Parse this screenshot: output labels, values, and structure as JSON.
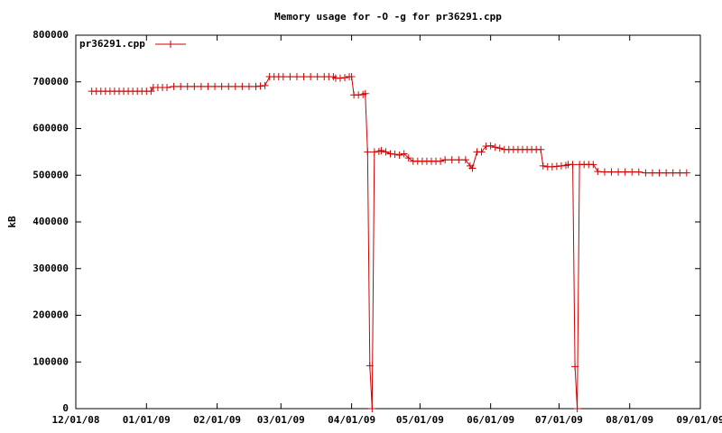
{
  "chart_data": {
    "type": "line",
    "title": "Memory usage for -O -g for pr36291.cpp",
    "y_label": "kB",
    "x": [
      "2008-12-08",
      "2008-12-10",
      "2008-12-12",
      "2008-12-14",
      "2008-12-16",
      "2008-12-18",
      "2008-12-20",
      "2008-12-22",
      "2008-12-24",
      "2008-12-26",
      "2008-12-28",
      "2008-12-30",
      "2009-01-01",
      "2009-01-03",
      "2009-01-04",
      "2009-01-06",
      "2009-01-08",
      "2009-01-10",
      "2009-01-13",
      "2009-01-16",
      "2009-01-19",
      "2009-01-22",
      "2009-01-25",
      "2009-01-28",
      "2009-01-31",
      "2009-02-03",
      "2009-02-06",
      "2009-02-09",
      "2009-02-12",
      "2009-02-15",
      "2009-02-18",
      "2009-02-20",
      "2009-02-22",
      "2009-02-24",
      "2009-02-26",
      "2009-02-28",
      "2009-03-02",
      "2009-03-05",
      "2009-03-08",
      "2009-03-11",
      "2009-03-14",
      "2009-03-17",
      "2009-03-20",
      "2009-03-22",
      "2009-03-24",
      "2009-03-25",
      "2009-03-27",
      "2009-03-29",
      "2009-03-31",
      "2009-04-01",
      "2009-04-02",
      "2009-04-04",
      "2009-04-06",
      "2009-04-07",
      "2009-04-08",
      "2009-04-09",
      "2009-04-10",
      "2009-04-11",
      "2009-04-13",
      "2009-04-14",
      "2009-04-16",
      "2009-04-18",
      "2009-04-20",
      "2009-04-22",
      "2009-04-24",
      "2009-04-26",
      "2009-04-28",
      "2009-04-30",
      "2009-05-02",
      "2009-05-04",
      "2009-05-06",
      "2009-05-08",
      "2009-05-10",
      "2009-05-12",
      "2009-05-15",
      "2009-05-18",
      "2009-05-21",
      "2009-05-23",
      "2009-05-24",
      "2009-05-26",
      "2009-05-28",
      "2009-05-30",
      "2009-06-01",
      "2009-06-03",
      "2009-06-05",
      "2009-06-07",
      "2009-06-09",
      "2009-06-11",
      "2009-06-13",
      "2009-06-15",
      "2009-06-17",
      "2009-06-19",
      "2009-06-21",
      "2009-06-23",
      "2009-06-24",
      "2009-06-26",
      "2009-06-28",
      "2009-06-30",
      "2009-07-02",
      "2009-07-04",
      "2009-07-05",
      "2009-07-07",
      "2009-07-08",
      "2009-07-09",
      "2009-07-10",
      "2009-07-12",
      "2009-07-14",
      "2009-07-16",
      "2009-07-18",
      "2009-07-21",
      "2009-07-24",
      "2009-07-27",
      "2009-07-30",
      "2009-08-02",
      "2009-08-05",
      "2009-08-08",
      "2009-08-11",
      "2009-08-14",
      "2009-08-17",
      "2009-08-20",
      "2009-08-23",
      "2009-08-26"
    ],
    "series": [
      {
        "name": "pr36291.cpp",
        "color": "#d00000",
        "values": [
          680000,
          680000,
          680000,
          680000,
          680000,
          680000,
          680000,
          680000,
          680000,
          680000,
          680000,
          680000,
          680000,
          680000,
          688000,
          688000,
          688000,
          688000,
          690000,
          690000,
          690000,
          690000,
          690000,
          690000,
          690000,
          690000,
          690000,
          690000,
          690000,
          690000,
          690000,
          691000,
          692000,
          711000,
          711000,
          711000,
          711000,
          711000,
          711000,
          711000,
          711000,
          711000,
          711000,
          711000,
          711000,
          708000,
          708000,
          709000,
          711000,
          711000,
          672000,
          672000,
          673000,
          675000,
          550000,
          92000,
          0,
          550000,
          551000,
          553000,
          550000,
          546000,
          545000,
          543000,
          546000,
          537000,
          530000,
          530000,
          530000,
          530000,
          530000,
          530000,
          530000,
          533000,
          533000,
          533000,
          533000,
          520000,
          515000,
          550000,
          550000,
          562000,
          563000,
          560000,
          558000,
          555000,
          555000,
          555000,
          555000,
          555000,
          555000,
          555000,
          555000,
          555000,
          520000,
          518000,
          518000,
          519000,
          520000,
          521000,
          523000,
          523000,
          90000,
          0,
          523000,
          523000,
          523000,
          523000,
          508000,
          507000,
          507000,
          507000,
          507000,
          507000,
          507000,
          505000,
          505000,
          505000,
          505000,
          505000,
          505000,
          505000
        ]
      }
    ],
    "xlim": [
      "2008-12-01",
      "2009-09-01"
    ],
    "xticks": [
      {
        "value": "2008-12-01",
        "label": "12/01/08"
      },
      {
        "value": "2009-01-01",
        "label": "01/01/09"
      },
      {
        "value": "2009-02-01",
        "label": "02/01/09"
      },
      {
        "value": "2009-03-01",
        "label": "03/01/09"
      },
      {
        "value": "2009-04-01",
        "label": "04/01/09"
      },
      {
        "value": "2009-05-01",
        "label": "05/01/09"
      },
      {
        "value": "2009-06-01",
        "label": "06/01/09"
      },
      {
        "value": "2009-07-01",
        "label": "07/01/09"
      },
      {
        "value": "2009-08-01",
        "label": "08/01/09"
      },
      {
        "value": "2009-09-01",
        "label": "09/01/09"
      }
    ],
    "ylim": [
      0,
      800000
    ],
    "yticks": [
      0,
      100000,
      200000,
      300000,
      400000,
      500000,
      600000,
      700000,
      800000
    ],
    "legend": "top-left",
    "grid": false
  }
}
